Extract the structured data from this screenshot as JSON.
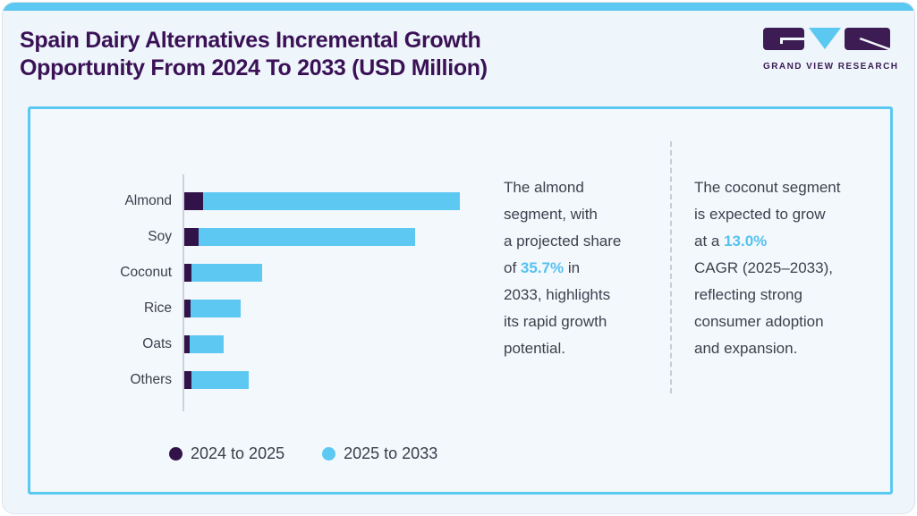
{
  "header": {
    "title_line1": "Spain Dairy Alternatives Incremental Growth",
    "title_line2": "Opportunity From 2024 To 2033 (USD Million)",
    "logo_text": "GRAND VIEW RESEARCH"
  },
  "colors": {
    "title_purple": "#3b1156",
    "topbar_blue": "#5bc8f2",
    "card_border_blue": "#5bc8f2",
    "bar_dark_purple": "#321349",
    "bar_light_blue": "#5dc9f3",
    "accent_text_blue": "#56c1ef",
    "axis_gray": "#ccd2da",
    "body_text": "#3f404e"
  },
  "chart_data": {
    "type": "bar",
    "orientation": "horizontal",
    "stacked": true,
    "title": "Spain Dairy Alternatives Incremental Growth Opportunity From 2024 To 2033 (USD Million)",
    "categories": [
      "Almond",
      "Soy",
      "Coconut",
      "Rice",
      "Oats",
      "Others"
    ],
    "series": [
      {
        "name": "2024 to 2025",
        "color": "#321349",
        "values": [
          6.8,
          5.2,
          2.6,
          2.3,
          1.9,
          2.6
        ]
      },
      {
        "name": "2025 to 2033",
        "color": "#5dc9f3",
        "values": [
          93.2,
          78.6,
          25.6,
          18.2,
          12.3,
          20.8
        ]
      }
    ],
    "value_unit": "relative length, percent of longest bar (no numeric axis or data labels shown)",
    "value_axis_visible": false,
    "gridlines": false,
    "legend_position": "bottom"
  },
  "insights": {
    "left": {
      "lines": [
        [
          {
            "t": "The almond"
          }
        ],
        [
          {
            "t": "segment, with"
          }
        ],
        [
          {
            "t": "a projected share"
          }
        ],
        [
          {
            "t": "of "
          },
          {
            "t": "35.7%",
            "accent": true
          },
          {
            "t": " in"
          }
        ],
        [
          {
            "t": "2033, highlights"
          }
        ],
        [
          {
            "t": "its rapid growth"
          }
        ],
        [
          {
            "t": "potential."
          }
        ]
      ]
    },
    "right": {
      "lines": [
        [
          {
            "t": "The coconut segment"
          }
        ],
        [
          {
            "t": "is expected to grow"
          }
        ],
        [
          {
            "t": "at a "
          },
          {
            "t": "13.0%",
            "accent": true
          }
        ],
        [
          {
            "t": "CAGR (2025–2033),"
          }
        ],
        [
          {
            "t": "reflecting strong"
          }
        ],
        [
          {
            "t": "consumer adoption"
          }
        ],
        [
          {
            "t": "and expansion."
          }
        ]
      ]
    }
  }
}
